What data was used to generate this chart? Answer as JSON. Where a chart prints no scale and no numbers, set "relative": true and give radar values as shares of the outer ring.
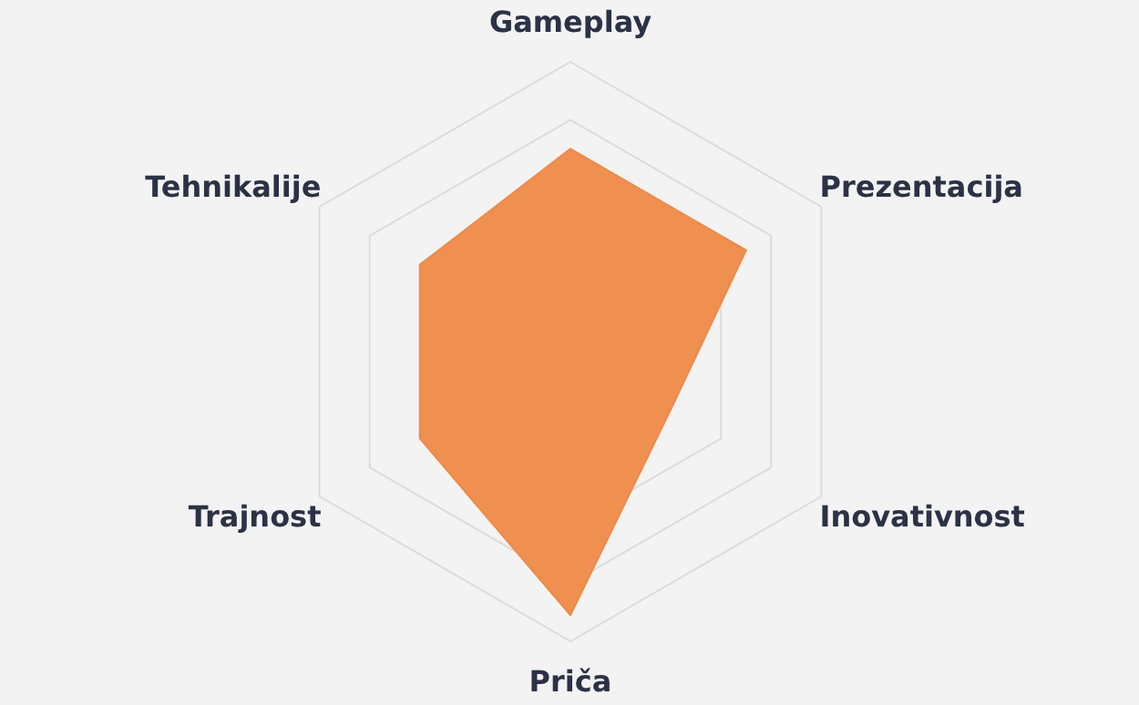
{
  "chart_data": {
    "type": "radar",
    "relative": true,
    "grid": true,
    "categories": [
      "Gameplay",
      "Prezentacija",
      "Inovativnost",
      "Priča",
      "Trajnost",
      "Tehnikalije"
    ],
    "series": [
      {
        "color": "#ee8a48",
        "values": [
          0.7,
          0.7,
          0.4,
          0.91,
          0.6,
          0.6
        ]
      }
    ]
  }
}
